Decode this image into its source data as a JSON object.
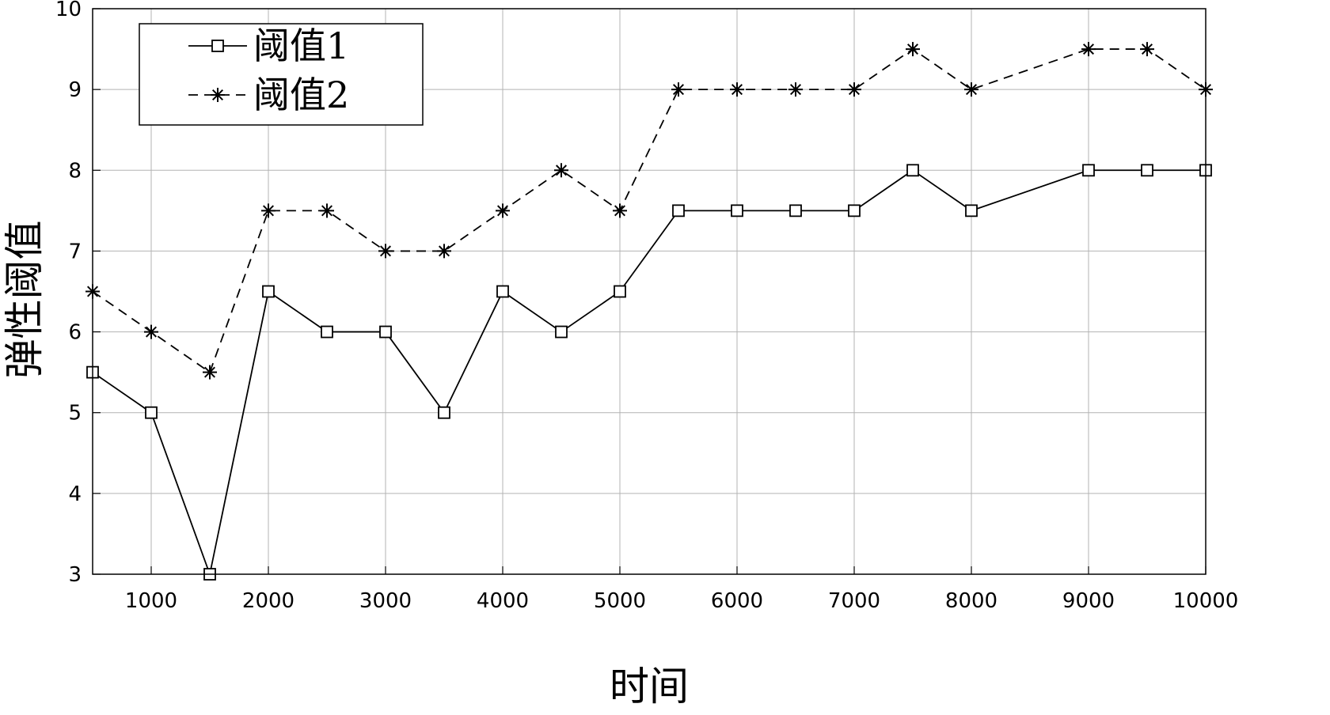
{
  "chart_data": {
    "type": "line",
    "xlabel": "时间",
    "ylabel": "弹性阈值",
    "xlim": [
      500,
      10000
    ],
    "ylim": [
      3,
      10
    ],
    "x_ticks": [
      1000,
      2000,
      3000,
      4000,
      5000,
      6000,
      7000,
      8000,
      9000,
      10000
    ],
    "y_ticks": [
      3,
      4,
      5,
      6,
      7,
      8,
      9,
      10
    ],
    "grid": true,
    "legend_position": "top-left",
    "x": [
      500,
      1000,
      1500,
      2000,
      2500,
      3000,
      3500,
      4000,
      4500,
      5000,
      5500,
      6000,
      6500,
      7000,
      7500,
      8000,
      9000,
      9500,
      10000
    ],
    "series": [
      {
        "name": "阈值1",
        "marker": "square",
        "line_style": "solid",
        "color": "#000000",
        "values": [
          5.5,
          5,
          3,
          6.5,
          6,
          6,
          5,
          6.5,
          6,
          6.5,
          7.5,
          7.5,
          7.5,
          7.5,
          8,
          7.5,
          8,
          8,
          8
        ]
      },
      {
        "name": "阈值2",
        "marker": "asterisk",
        "line_style": "dashed",
        "color": "#000000",
        "values": [
          6.5,
          6,
          5.5,
          7.5,
          7.5,
          7,
          7,
          7.5,
          8,
          7.5,
          9,
          9,
          9,
          9,
          9.5,
          9,
          9.5,
          9.5,
          9
        ]
      }
    ]
  }
}
